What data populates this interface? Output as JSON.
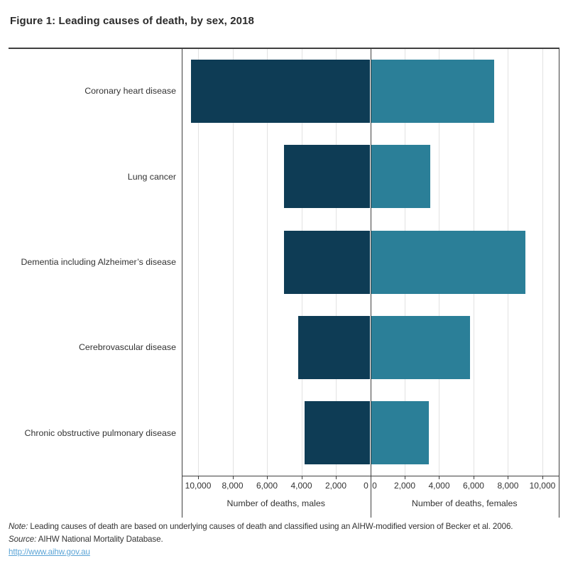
{
  "title": "Figure 1: Leading causes of death, by sex, 2018",
  "chart_data": {
    "type": "bar",
    "variant": "diverging-horizontal",
    "title": "Figure 1: Leading causes of death, by sex, 2018",
    "categories": [
      "Coronary heart disease",
      "Lung cancer",
      "Dementia including Alzheimer’s disease",
      "Cerebrovascular disease",
      "Chronic obstructive pulmonary disease"
    ],
    "series": [
      {
        "name": "males",
        "axis_label": "Number of deaths, males",
        "color": "#0e3c55",
        "values": [
          10400,
          5000,
          5000,
          4200,
          3800
        ]
      },
      {
        "name": "females",
        "axis_label": "Number of deaths, females",
        "color": "#2b7f98",
        "values": [
          7200,
          3500,
          9000,
          5800,
          3400
        ]
      }
    ],
    "xlabel_left": "Number of deaths, males",
    "xlabel_right": "Number of deaths, females",
    "xlim_each_side": [
      0,
      10950
    ],
    "tick_values": [
      0,
      2000,
      4000,
      6000,
      8000,
      10000
    ],
    "tick_labels": [
      "0",
      "2,000",
      "4,000",
      "6,000",
      "8,000",
      "10,000"
    ],
    "grid": true,
    "legend": false
  },
  "footer": {
    "note_label": "Note:",
    "note_text": " Leading causes of death are based on underlying causes of death and classified using an AIHW-modified version of Becker et al. 2006.",
    "source_label": "Source:",
    "source_text": " AIHW National Mortality Database.",
    "link": "http://www.aihw.gov.au"
  },
  "colors": {
    "males_bar": "#0e3c55",
    "females_bar": "#2b7f98",
    "gridline": "#e2e2e2",
    "frame": "#3f3f3f",
    "text": "#333333",
    "link": "#5ba4d6"
  }
}
